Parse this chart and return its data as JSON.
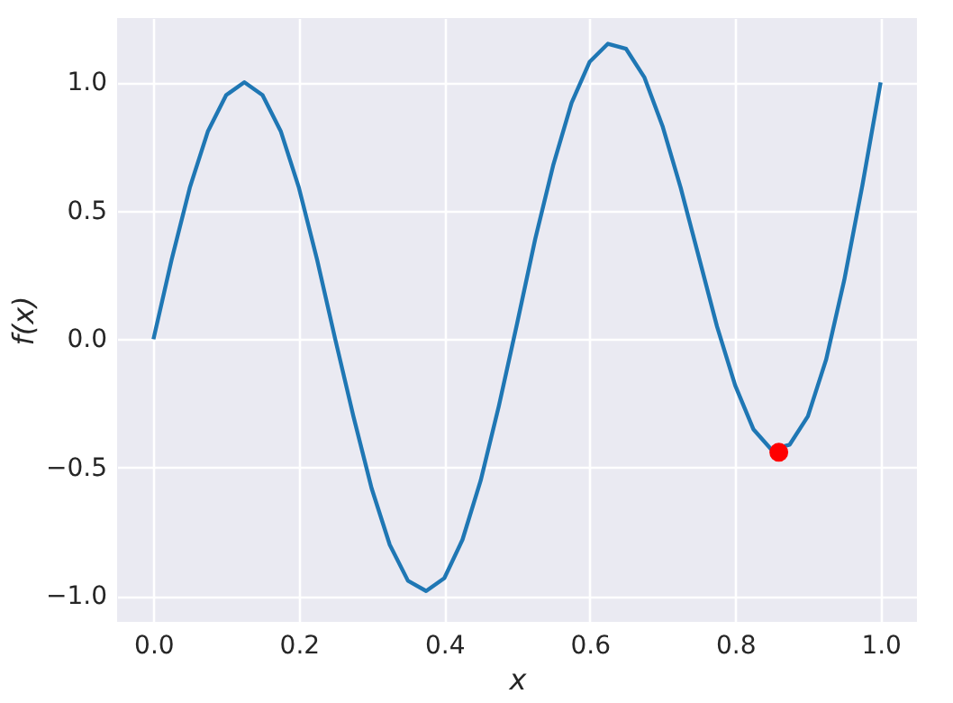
{
  "chart_data": {
    "type": "line",
    "xlabel": "x",
    "ylabel": "f(x)",
    "xlim": [
      -0.05,
      1.05
    ],
    "ylim": [
      -1.1,
      1.25
    ],
    "xticks": [
      {
        "value": 0,
        "label": "0.0"
      },
      0.2,
      0.4,
      0.6,
      0.8,
      {
        "value": 1,
        "label": "1.0"
      }
    ],
    "yticks": [
      {
        "value": -1,
        "label": "−1.0"
      },
      -0.5,
      {
        "value": 0,
        "label": "0.0"
      },
      0.5,
      {
        "value": 1,
        "label": "1.0"
      }
    ],
    "grid": true,
    "series": [
      {
        "color": "#1f77b4",
        "marker": "none",
        "x": [
          0,
          0.025,
          0.05,
          0.075,
          0.1,
          0.125,
          0.15,
          0.175,
          0.2,
          0.225,
          0.25,
          0.275,
          0.3,
          0.325,
          0.35,
          0.375,
          0.4,
          0.425,
          0.45,
          0.475,
          0.5,
          0.525,
          0.55,
          0.575,
          0.6,
          0.625,
          0.65,
          0.675,
          0.7,
          0.725,
          0.75,
          0.775,
          0.8,
          0.825,
          0.85,
          0.875,
          0.9,
          0.925,
          0.95,
          0.975,
          1.0
        ],
        "values": [
          0,
          0.31,
          0.59,
          0.81,
          0.95,
          1.0,
          0.95,
          0.81,
          0.59,
          0.31,
          0.0,
          -0.3,
          -0.58,
          -0.8,
          -0.94,
          -0.98,
          -0.93,
          -0.78,
          -0.55,
          -0.26,
          0.06,
          0.39,
          0.68,
          0.92,
          1.08,
          1.15,
          1.13,
          1.02,
          0.83,
          0.59,
          0.32,
          0.05,
          -0.18,
          -0.35,
          -0.43,
          -0.41,
          -0.3,
          -0.08,
          0.23,
          0.6,
          1.0
        ]
      },
      {
        "type": "scatter",
        "color": "#ff0000",
        "marker": "circle",
        "x": [
          0.86
        ],
        "values": [
          -0.44
        ]
      }
    ]
  }
}
